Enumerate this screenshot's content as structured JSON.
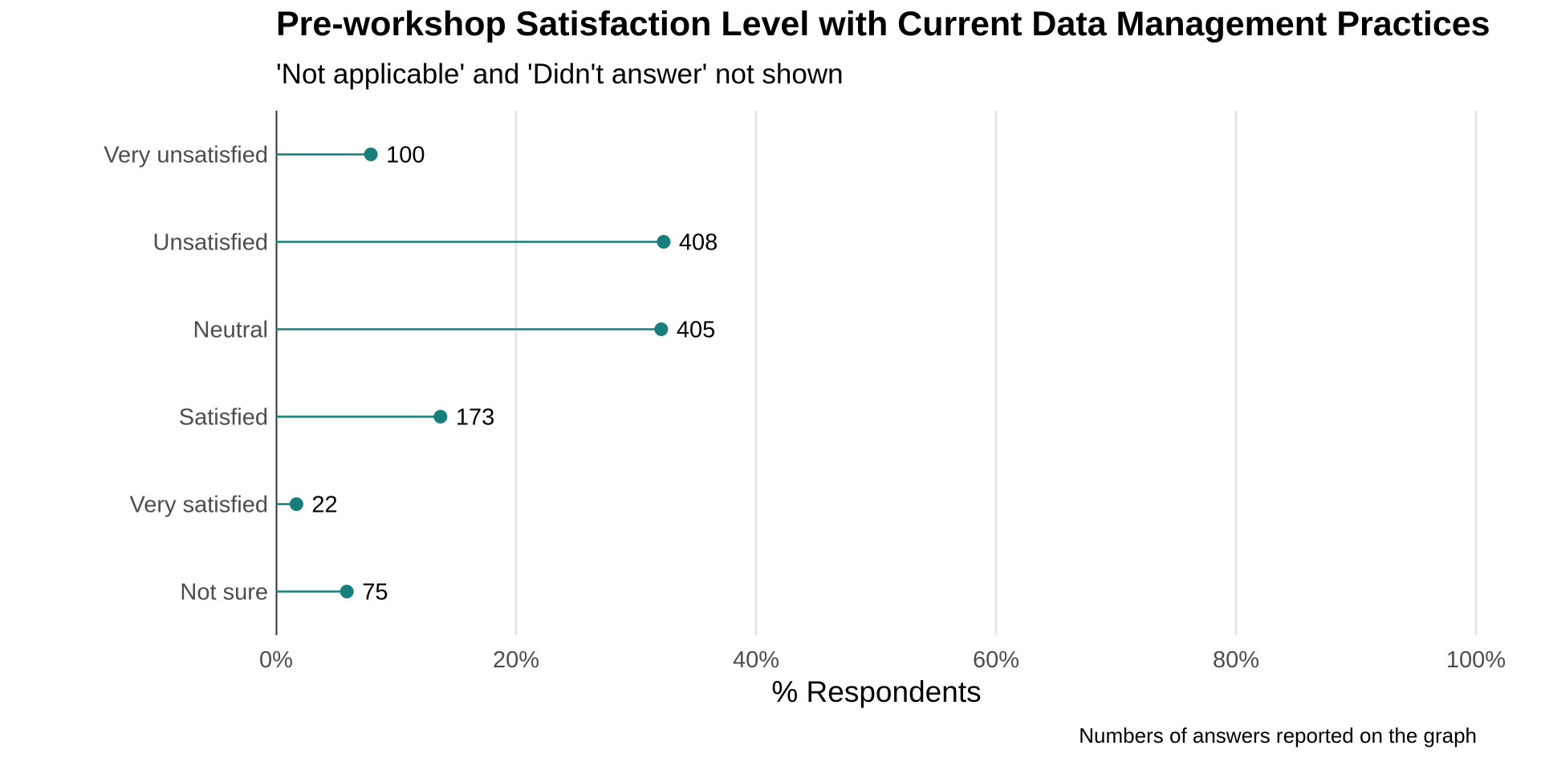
{
  "chart_data": {
    "type": "lollipop",
    "title": "Pre-workshop Satisfaction Level with Current Data Management Practices",
    "subtitle": "'Not applicable' and 'Didn't answer' not shown",
    "caption": "Numbers of answers reported on the graph",
    "xlabel": "% Respondents",
    "ylabel": "",
    "xlim": [
      0,
      100
    ],
    "x_ticks": [
      0,
      20,
      40,
      60,
      80,
      100
    ],
    "x_tick_labels": [
      "0%",
      "20%",
      "40%",
      "60%",
      "80%",
      "100%"
    ],
    "grid": "vertical major",
    "categories": [
      "Very unsatisfied",
      "Unsatisfied",
      "Neutral",
      "Satisfied",
      "Very satisfied",
      "Not sure"
    ],
    "values_percent": [
      7.9,
      32.3,
      32.1,
      13.7,
      1.7,
      5.9
    ],
    "counts": [
      100,
      408,
      405,
      173,
      22,
      75
    ],
    "color": "#167f7b",
    "grid_color": "#e5e5e5",
    "axis_color": "#333333"
  }
}
